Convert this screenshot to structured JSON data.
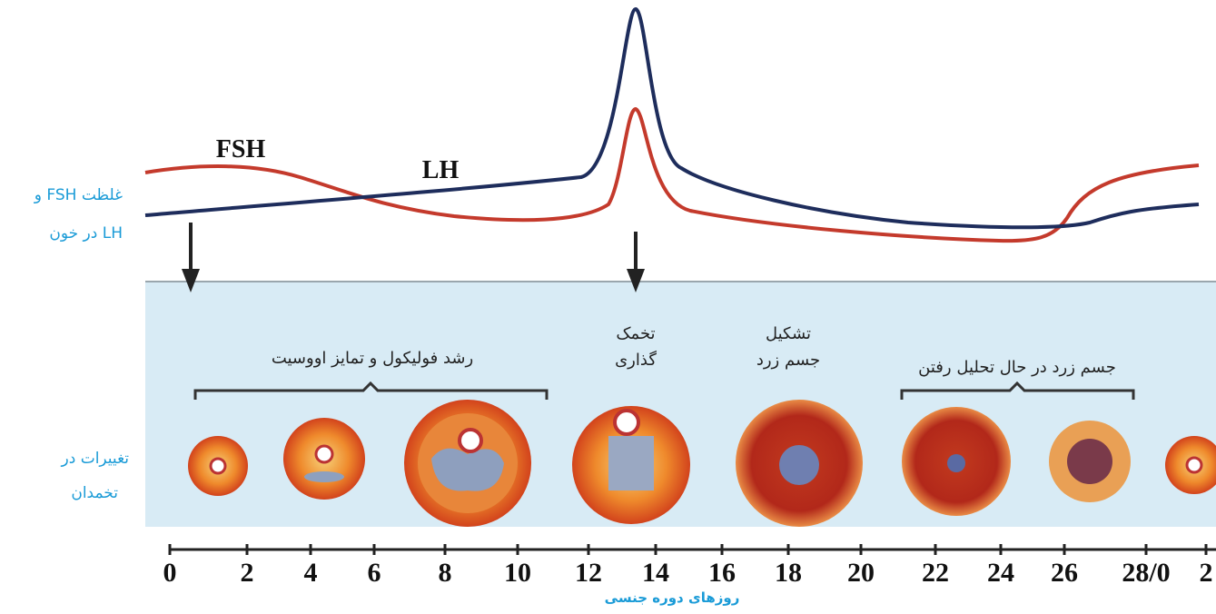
{
  "y_axis_label": [
    "غلظت FSH و",
    "LH در خون"
  ],
  "curve_labels": {
    "fsh": "FSH",
    "lh": "LH"
  },
  "ovary_label": [
    "تغییرات در",
    "تخمدان"
  ],
  "stages": [
    {
      "lines": [
        "رشد فولیکول و تمایز اووسیت"
      ]
    },
    {
      "lines": [
        "تخمک",
        "گذاری"
      ]
    },
    {
      "lines": [
        "تشکیل",
        "جسم زرد"
      ]
    },
    {
      "lines": [
        "جسم زرد در حال تحلیل رفتن"
      ]
    }
  ],
  "x_ticks": [
    "0",
    "2",
    "4",
    "6",
    "8",
    "10",
    "12",
    "14",
    "16",
    "18",
    "20",
    "22",
    "24",
    "26",
    "28/0",
    "2"
  ],
  "x_label": "روزهای دوره جنسی"
}
